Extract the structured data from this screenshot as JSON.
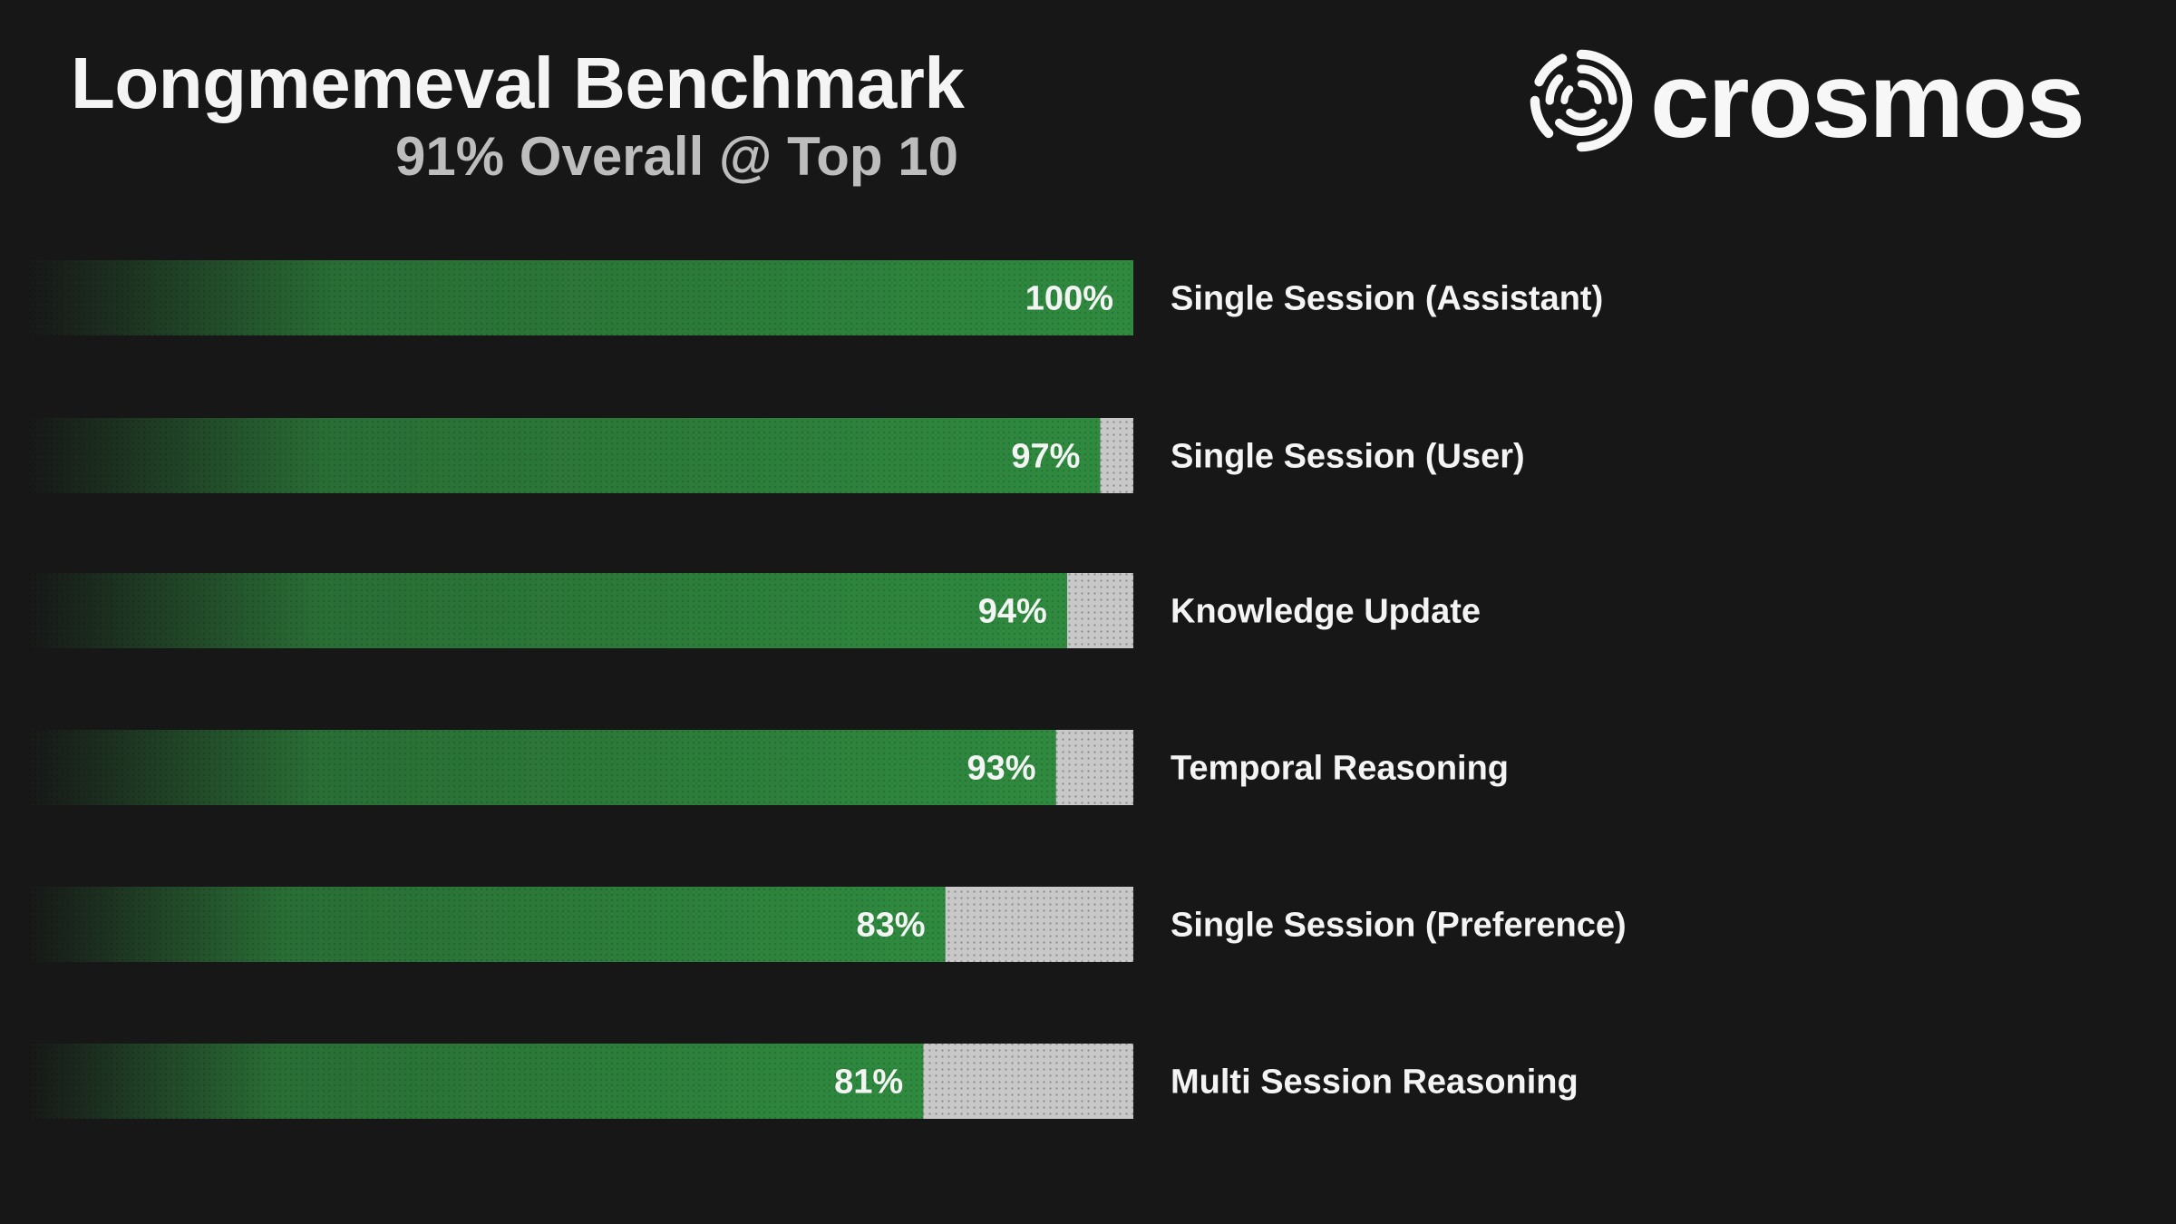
{
  "header": {
    "title": "Longmemeval Benchmark",
    "subtitle": "91% Overall @ Top 10"
  },
  "brand": {
    "name": "crosmos",
    "icon": "swirl-logo-icon"
  },
  "colors": {
    "background": "#171717",
    "bar_fill": "#2f8a3f",
    "remainder_fill": "#c8c8c8",
    "text": "#f4f4f4",
    "subtitle": "#bdbdbd"
  },
  "chart_data": {
    "type": "bar",
    "orientation": "horizontal",
    "categories": [
      "Single Session (Assistant)",
      "Single Session (User)",
      "Knowledge Update",
      "Temporal Reasoning",
      "Single Session (Preference)",
      "Multi Session Reasoning"
    ],
    "values": [
      100,
      97,
      94,
      93,
      83,
      81
    ],
    "value_labels": [
      "100%",
      "97%",
      "94%",
      "93%",
      "83%",
      "81%"
    ],
    "xlim": [
      0,
      100
    ],
    "grid": false,
    "legend": "none"
  }
}
